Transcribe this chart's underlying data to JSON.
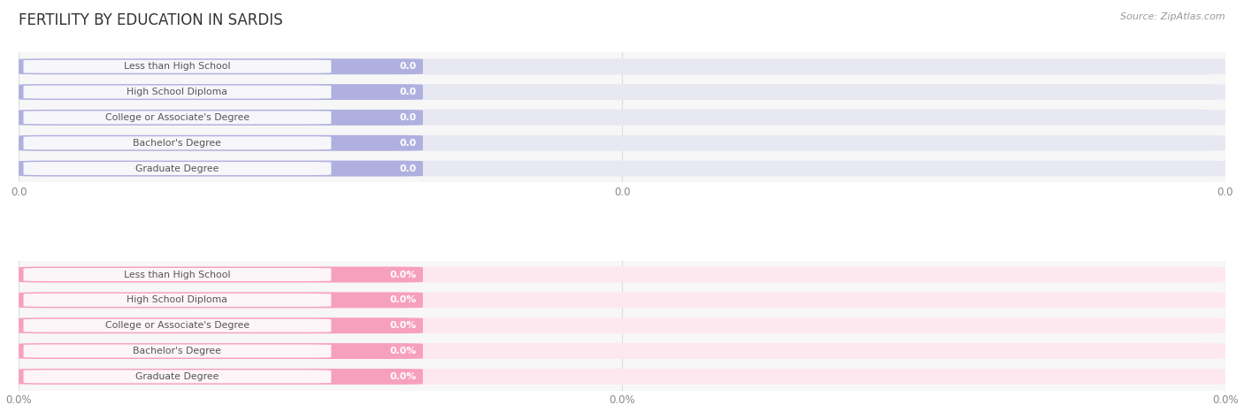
{
  "title": "FERTILITY BY EDUCATION IN SARDIS",
  "source": "Source: ZipAtlas.com",
  "categories": [
    "Less than High School",
    "High School Diploma",
    "College or Associate's Degree",
    "Bachelor's Degree",
    "Graduate Degree"
  ],
  "values_top": [
    0.0,
    0.0,
    0.0,
    0.0,
    0.0
  ],
  "values_bottom": [
    0.0,
    0.0,
    0.0,
    0.0,
    0.0
  ],
  "bar_color_top": "#b0b0e0",
  "bar_bg_color_top": "#e8e8f2",
  "bar_color_bottom": "#f7a0be",
  "bar_bg_color_bottom": "#fde8f0",
  "bg_color": "#ffffff",
  "plot_bg_color": "#f7f7f7",
  "title_color": "#333333",
  "source_color": "#999999",
  "tick_labels_top": [
    "0.0",
    "0.0",
    "0.0"
  ],
  "tick_labels_bottom": [
    "0.0%",
    "0.0%",
    "0.0%"
  ],
  "value_labels_top": [
    "0.0",
    "0.0",
    "0.0",
    "0.0",
    "0.0"
  ],
  "value_labels_bottom": [
    "0.0%",
    "0.0%",
    "0.0%",
    "0.0%",
    "0.0%"
  ],
  "bar_height": 0.62,
  "label_text_color": "#555555",
  "value_text_color_top": "#ffffff",
  "value_text_color_bottom": "#ffffff"
}
